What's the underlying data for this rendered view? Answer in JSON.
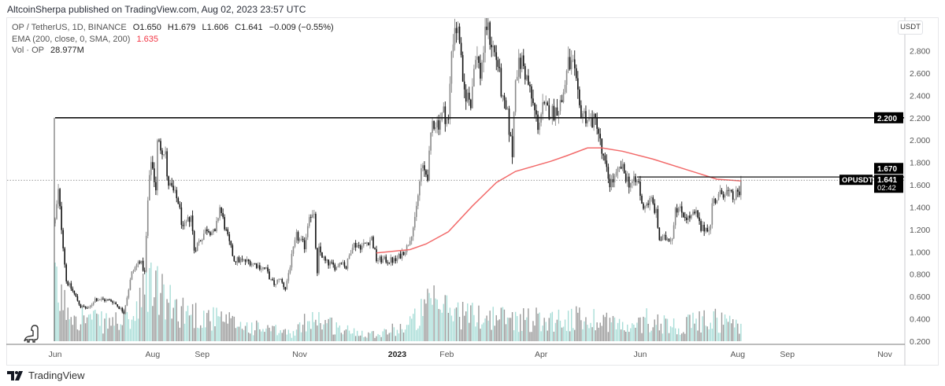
{
  "header": {
    "published": "AltcoinSherpa published on TradingView.com, Aug 02, 2023 23:57 UTC"
  },
  "legend": {
    "symbol": "OP / TetherUS, 1D, BINANCE",
    "open": "O1.650",
    "high": "H1.679",
    "low": "L1.606",
    "close": "C1.641",
    "change": "−0.009 (−0.55%)",
    "ema_label": "EMA (200, close, 0, SMA, 200)",
    "ema_value": "1.635",
    "vol_label": "Vol · OP",
    "vol_value": "28.977M"
  },
  "currency_button": "USDT",
  "footer": {
    "brand": "TradingView"
  },
  "colors": {
    "up": "#8a8a8a",
    "down": "#111111",
    "vol_up": "#a8ddd7",
    "vol_down": "#9a9a9a",
    "ema": "#f26a6a",
    "accent_label": "#000000"
  },
  "chart_data": {
    "type": "candlestick",
    "title": "OP / TetherUS, 1D, BINANCE",
    "x_unit": "days since 2022-06-01",
    "y_unit": "USDT",
    "ylim": [
      0.2,
      2.95
    ],
    "y_ticks": [
      "0.200",
      "0.400",
      "0.600",
      "0.800",
      "1.000",
      "1.200",
      "1.400",
      "1.600",
      "1.800",
      "2.000",
      "2.200",
      "2.400",
      "2.600",
      "2.800"
    ],
    "x_ticks": [
      {
        "label": "Jun",
        "day": 0
      },
      {
        "label": "Aug",
        "day": 61
      },
      {
        "label": "Sep",
        "day": 92
      },
      {
        "label": "Nov",
        "day": 153
      },
      {
        "label": "2023",
        "day": 214
      },
      {
        "label": "Feb",
        "day": 245
      },
      {
        "label": "Apr",
        "day": 304
      },
      {
        "label": "Jun",
        "day": 366
      },
      {
        "label": "Aug",
        "day": 427
      },
      {
        "label": "Sep",
        "day": 458
      },
      {
        "label": "Nov",
        "day": 519
      }
    ],
    "close_path": [
      [
        0,
        1.28
      ],
      [
        2,
        1.54
      ],
      [
        7,
        0.74
      ],
      [
        11,
        0.65
      ],
      [
        16,
        0.51
      ],
      [
        21,
        0.49
      ],
      [
        25,
        0.58
      ],
      [
        36,
        0.56
      ],
      [
        43,
        0.46
      ],
      [
        48,
        0.81
      ],
      [
        53,
        0.93
      ],
      [
        56,
        0.81
      ],
      [
        58,
        1.45
      ],
      [
        60,
        1.83
      ],
      [
        63,
        1.57
      ],
      [
        64,
        1.97
      ],
      [
        69,
        1.9
      ],
      [
        70,
        1.64
      ],
      [
        77,
        1.45
      ],
      [
        80,
        1.19
      ],
      [
        85,
        1.33
      ],
      [
        87,
        1.02
      ],
      [
        95,
        1.21
      ],
      [
        100,
        1.16
      ],
      [
        103,
        1.4
      ],
      [
        108,
        1.12
      ],
      [
        112,
        0.93
      ],
      [
        122,
        0.91
      ],
      [
        132,
        0.84
      ],
      [
        135,
        0.74
      ],
      [
        138,
        0.7
      ],
      [
        140,
        0.77
      ],
      [
        144,
        0.67
      ],
      [
        148,
        0.95
      ],
      [
        151,
        1.14
      ],
      [
        156,
        1.05
      ],
      [
        159,
        1.35
      ],
      [
        162,
        1.3
      ],
      [
        164,
        0.79
      ],
      [
        165,
        1.02
      ],
      [
        169,
        0.91
      ],
      [
        176,
        0.86
      ],
      [
        179,
        0.93
      ],
      [
        182,
        0.86
      ],
      [
        186,
        1.07
      ],
      [
        192,
        1.05
      ],
      [
        198,
        1.12
      ],
      [
        201,
        0.93
      ],
      [
        213,
        0.92
      ],
      [
        220,
        1.04
      ],
      [
        225,
        1.27
      ],
      [
        229,
        1.74
      ],
      [
        233,
        1.69
      ],
      [
        236,
        2.16
      ],
      [
        240,
        2.16
      ],
      [
        243,
        2.25
      ],
      [
        246,
        2.16
      ],
      [
        248,
        2.8
      ],
      [
        250,
        3.03
      ],
      [
        253,
        2.92
      ],
      [
        255,
        2.45
      ],
      [
        260,
        2.35
      ],
      [
        263,
        2.8
      ],
      [
        266,
        2.59
      ],
      [
        270,
        3.03
      ],
      [
        272,
        2.92
      ],
      [
        277,
        2.68
      ],
      [
        280,
        2.33
      ],
      [
        283,
        2.21
      ],
      [
        286,
        1.88
      ],
      [
        288,
        2.61
      ],
      [
        292,
        2.71
      ],
      [
        296,
        2.49
      ],
      [
        300,
        2.25
      ],
      [
        302,
        2.14
      ],
      [
        305,
        2.28
      ],
      [
        312,
        2.25
      ],
      [
        317,
        2.35
      ],
      [
        321,
        2.68
      ],
      [
        324,
        2.66
      ],
      [
        328,
        2.28
      ],
      [
        334,
        2.18
      ],
      [
        339,
        2.16
      ],
      [
        342,
        1.88
      ],
      [
        345,
        1.72
      ],
      [
        347,
        1.62
      ],
      [
        350,
        1.65
      ],
      [
        354,
        1.76
      ],
      [
        359,
        1.62
      ],
      [
        365,
        1.62
      ],
      [
        367,
        1.41
      ],
      [
        373,
        1.46
      ],
      [
        376,
        1.34
      ],
      [
        378,
        1.11
      ],
      [
        386,
        1.13
      ],
      [
        388,
        1.41
      ],
      [
        396,
        1.3
      ],
      [
        401,
        1.34
      ],
      [
        404,
        1.2
      ],
      [
        410,
        1.23
      ],
      [
        411,
        1.44
      ],
      [
        419,
        1.55
      ],
      [
        424,
        1.48
      ],
      [
        428,
        1.53
      ],
      [
        429,
        1.641
      ]
    ],
    "ema200_path": [
      [
        201,
        0.99
      ],
      [
        222,
        1.02
      ],
      [
        232,
        1.07
      ],
      [
        246,
        1.18
      ],
      [
        261,
        1.41
      ],
      [
        276,
        1.62
      ],
      [
        288,
        1.72
      ],
      [
        310,
        1.81
      ],
      [
        320,
        1.86
      ],
      [
        333,
        1.93
      ],
      [
        342,
        1.93
      ],
      [
        355,
        1.9
      ],
      [
        374,
        1.83
      ],
      [
        394,
        1.74
      ],
      [
        414,
        1.65
      ],
      [
        429,
        1.635
      ]
    ],
    "volume_relative_path": [
      [
        0,
        0.75
      ],
      [
        5,
        0.5
      ],
      [
        15,
        0.35
      ],
      [
        30,
        0.25
      ],
      [
        50,
        0.3
      ],
      [
        60,
        0.9
      ],
      [
        70,
        0.5
      ],
      [
        90,
        0.35
      ],
      [
        120,
        0.2
      ],
      [
        150,
        0.1
      ],
      [
        160,
        0.35
      ],
      [
        180,
        0.15
      ],
      [
        200,
        0.1
      ],
      [
        220,
        0.2
      ],
      [
        235,
        0.5
      ],
      [
        260,
        0.35
      ],
      [
        290,
        0.3
      ],
      [
        320,
        0.3
      ],
      [
        345,
        0.3
      ],
      [
        360,
        0.15
      ],
      [
        370,
        0.3
      ],
      [
        390,
        0.2
      ],
      [
        410,
        0.3
      ],
      [
        429,
        0.22
      ]
    ],
    "horizontal_levels": [
      {
        "price": 2.2,
        "from_day": 0,
        "label": "2.200"
      },
      {
        "price": 1.67,
        "from_day": 364,
        "label": "1.670"
      }
    ],
    "last_price": {
      "price": 1.641,
      "label": "1.641",
      "countdown": "02:42",
      "symbol_tag": "OPUSDT"
    }
  }
}
